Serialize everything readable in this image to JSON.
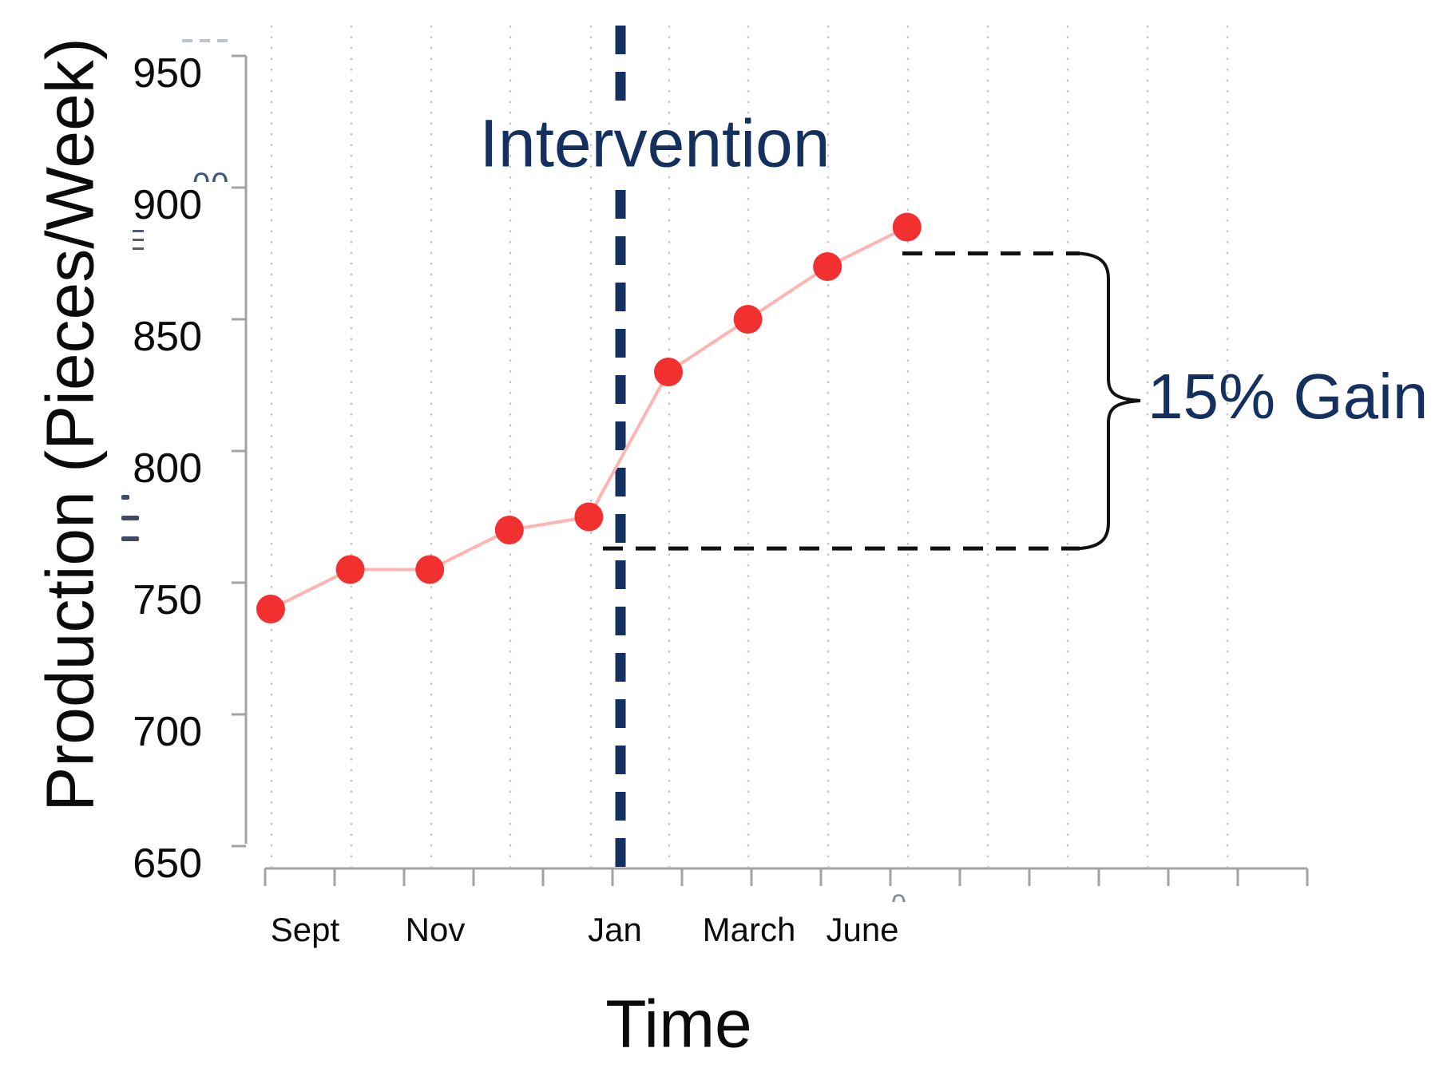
{
  "annotations": {
    "intervention_label": "Intervention",
    "gain_label": "15% Gain"
  },
  "artifacts": {
    "erased_zeros": "00",
    "erased_zero": "0"
  },
  "colors": {
    "navy_annotation": "#14305f",
    "data_point_red": "#f23030",
    "series_line_pink": "#ffb4b4",
    "axis_gray": "#a3a3a3",
    "grid_dot_gray": "#c4c4c4",
    "bracket_black": "#111111",
    "text_black": "#0b0b0b"
  },
  "chart_data": {
    "type": "line",
    "title": "",
    "xlabel": "Time",
    "ylabel": "Production (Pieces/Week)",
    "x_tick_labels": [
      "Sept",
      "Nov",
      "Jan",
      "March",
      "June"
    ],
    "y_ticks": [
      950,
      900,
      850,
      800,
      750,
      700,
      650
    ],
    "ylim": [
      650,
      950
    ],
    "grid": "vertical-dotted",
    "legend": "none",
    "series": [
      {
        "name": "Production",
        "values": [
          740,
          755,
          755,
          770,
          775,
          830,
          850,
          870,
          885
        ]
      }
    ],
    "intervention": {
      "label": "Intervention",
      "style": "vertical-dashed-navy-line",
      "after_point_index": 5
    },
    "gain_bracket": {
      "label": "15% Gain",
      "lower_value": 763,
      "upper_value": 875,
      "style": "dashed-lines-with-curly-brace"
    }
  }
}
